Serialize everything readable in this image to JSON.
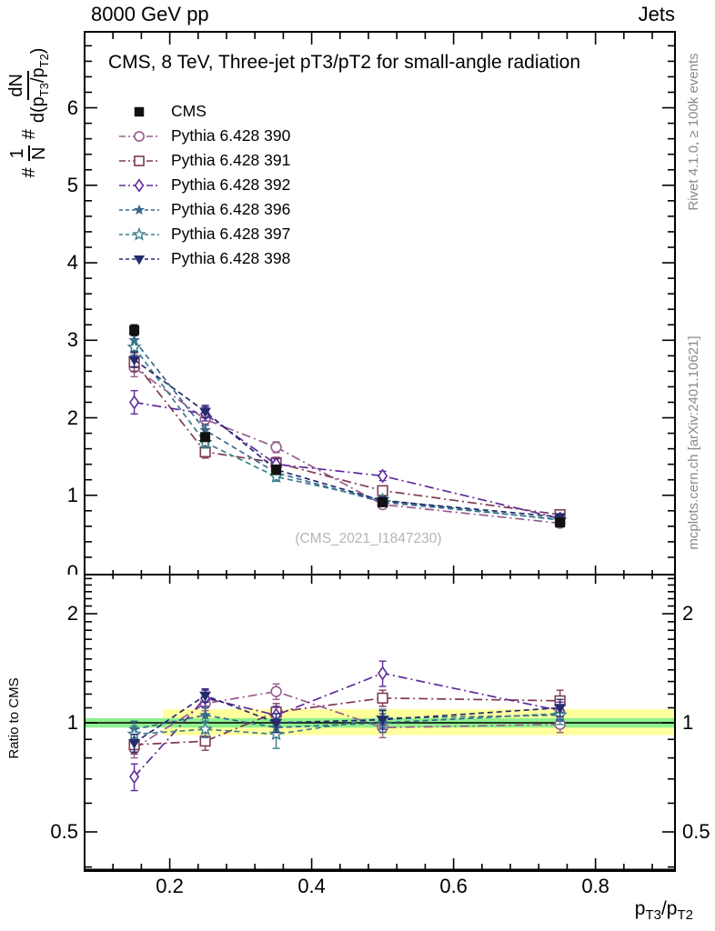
{
  "header": {
    "beam": "8000 GeV pp",
    "process": "Jets"
  },
  "titles": {
    "main": "CMS, 8 TeV, Three-jet pT3/pT2 for small-angle radiation",
    "watermark": "(CMS_2021_I1847230)",
    "rivet": "Rivet 4.1.0, ≥ 100k events",
    "mcplots": "mcplots.cern.ch [arXiv:2401.10621]",
    "ratio_ylabel": "Ratio to CMS"
  },
  "axis": {
    "xlabel": {
      "p1": "p",
      "s1": "T3",
      "p2": "/p",
      "s2": "T2"
    },
    "ylabel": {
      "h1": "#",
      "f1n": "1",
      "f1d": "N",
      "h2": "#",
      "f2n": "dN",
      "f2d_a": "d(p",
      "f2d_s1": "T3",
      "f2d_b": "/p",
      "f2d_s2": "T2",
      "f2d_c": ")"
    }
  },
  "chart_data": {
    "type": "line",
    "title": "CMS, 8 TeV, Three-jet pT3/pT2 for small-angle radiation",
    "xlabel": "pT3/pT2",
    "ylabel": "1/N dN/d(pT3/pT2)",
    "ratio_label": "Ratio to CMS",
    "legend_position": "top-left",
    "grid": false,
    "x": [
      0.15,
      0.25,
      0.35,
      0.5,
      0.75
    ],
    "xlim": [
      0.08,
      0.912
    ],
    "main_ylim": [
      0,
      6.98
    ],
    "ratio_ylim": [
      0.39,
      2.55
    ],
    "ratio_scale": "log",
    "ticks": {
      "x_labels": [
        "0.2",
        "0.4",
        "0.6",
        "0.8"
      ],
      "x_values": [
        0.2,
        0.4,
        0.6,
        0.8
      ],
      "x_minor_step": 0.04,
      "main_y_labels": [
        "0",
        "1",
        "2",
        "3",
        "4",
        "5",
        "6"
      ],
      "main_y_values": [
        0,
        1,
        2,
        3,
        4,
        5,
        6
      ],
      "y_minor_step": 0.2,
      "ratio_labels": [
        "0.5",
        "1",
        "2"
      ],
      "ratio_values": [
        0.5,
        1,
        2
      ],
      "ratio_minor_ticks": [
        0.4,
        0.6,
        0.7,
        0.8,
        0.9,
        1.1,
        1.2,
        1.3,
        1.4,
        1.5,
        1.6,
        1.7,
        1.8,
        1.9,
        2.1,
        2.2,
        2.3,
        2.4,
        2.5
      ]
    },
    "bands": {
      "yellow": {
        "lo": 0.925,
        "hi": 1.09,
        "x_start": 0.19,
        "color": "#ffff9e"
      },
      "green": {
        "lo": 0.97,
        "hi": 1.03,
        "color": "#8ef08e"
      },
      "unity_line_color": "#000000"
    },
    "series": [
      {
        "name": "CMS",
        "marker": "square-filled",
        "color": "#111111",
        "line": "none",
        "values": [
          3.13,
          1.75,
          1.33,
          0.91,
          0.65
        ],
        "errors": [
          0.07,
          0.05,
          0.04,
          0.03,
          0.02
        ],
        "ratio": null,
        "ratio_errors": null
      },
      {
        "name": "Pythia 6.428 390",
        "marker": "circle-open",
        "color": "#955e8f",
        "line": "dashdot",
        "values": [
          2.65,
          1.98,
          1.62,
          0.88,
          0.64
        ],
        "errors": [
          0.12,
          0.08,
          0.07,
          0.05,
          0.03
        ],
        "ratio": [
          0.85,
          1.13,
          1.22,
          0.97,
          0.99
        ],
        "ratio_errors": [
          0.05,
          0.05,
          0.06,
          0.06,
          0.05
        ]
      },
      {
        "name": "Pythia 6.428 391",
        "marker": "square-open",
        "color": "#7e3a54",
        "line": "dashdot",
        "values": [
          2.72,
          1.56,
          1.42,
          1.06,
          0.75
        ],
        "errors": [
          0.12,
          0.08,
          0.07,
          0.05,
          0.03
        ],
        "ratio": [
          0.87,
          0.89,
          1.07,
          1.17,
          1.15
        ],
        "ratio_errors": [
          0.05,
          0.05,
          0.06,
          0.06,
          0.08
        ]
      },
      {
        "name": "Pythia 6.428 392",
        "marker": "diamond-open",
        "color": "#5f2b9a",
        "line": "dashdot",
        "values": [
          2.2,
          2.05,
          1.4,
          1.25,
          0.7
        ],
        "errors": [
          0.15,
          0.09,
          0.07,
          0.06,
          0.03
        ],
        "ratio": [
          0.71,
          1.17,
          1.05,
          1.37,
          1.08
        ],
        "ratio_errors": [
          0.06,
          0.06,
          0.06,
          0.11,
          0.06
        ]
      },
      {
        "name": "Pythia 6.428 396",
        "marker": "star-filled",
        "color": "#3a688c",
        "line": "dashed",
        "values": [
          3.0,
          1.84,
          1.29,
          0.91,
          0.69
        ],
        "errors": [
          0.1,
          0.07,
          0.06,
          0.05,
          0.03
        ],
        "ratio": [
          0.96,
          1.05,
          0.97,
          1.0,
          1.06
        ],
        "ratio_errors": [
          0.05,
          0.05,
          0.06,
          0.06,
          0.05
        ]
      },
      {
        "name": "Pythia 6.428 397",
        "marker": "star-open",
        "color": "#3c7f8b",
        "line": "dashed",
        "values": [
          2.91,
          1.68,
          1.24,
          0.94,
          0.68
        ],
        "errors": [
          0.1,
          0.07,
          0.06,
          0.05,
          0.03
        ],
        "ratio": [
          0.93,
          0.96,
          0.93,
          1.03,
          1.05
        ],
        "ratio_errors": [
          0.05,
          0.05,
          0.08,
          0.06,
          0.06
        ]
      },
      {
        "name": "Pythia 6.428 398",
        "marker": "triangle-down-filled",
        "color": "#252a6d",
        "line": "dashed",
        "values": [
          2.75,
          2.08,
          1.33,
          0.93,
          0.72
        ],
        "errors": [
          0.1,
          0.08,
          0.06,
          0.05,
          0.03
        ],
        "ratio": [
          0.88,
          1.19,
          1.0,
          1.02,
          1.1
        ],
        "ratio_errors": [
          0.05,
          0.05,
          0.06,
          0.06,
          0.06
        ]
      }
    ]
  }
}
